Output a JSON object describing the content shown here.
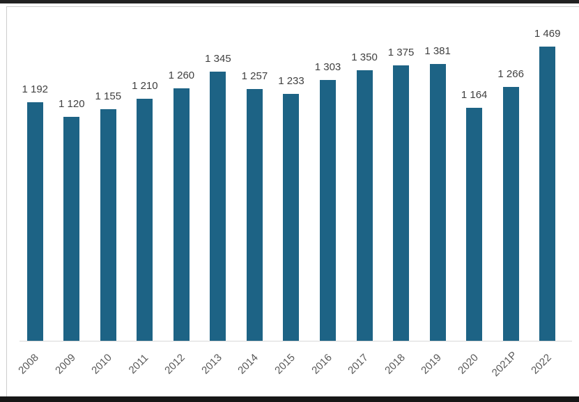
{
  "chart_data": {
    "type": "bar",
    "categories": [
      "2008",
      "2009",
      "2010",
      "2011",
      "2012",
      "2013",
      "2014",
      "2015",
      "2016",
      "2017",
      "2018",
      "2019",
      "2020",
      "2021P",
      "2022"
    ],
    "values": [
      1192,
      1120,
      1155,
      1210,
      1260,
      1345,
      1257,
      1233,
      1303,
      1350,
      1375,
      1381,
      1164,
      1266,
      1469
    ],
    "value_labels": [
      "1 192",
      "1 120",
      "1 155",
      "1 210",
      "1 260",
      "1 345",
      "1 257",
      "1 233",
      "1 303",
      "1 350",
      "1 375",
      "1 381",
      "1 164",
      "1 266",
      "1 469"
    ],
    "xlabel": "",
    "ylabel": "",
    "ylim": [
      0,
      1667
    ],
    "grid": "off",
    "legend": "none",
    "x_tick_rotation_deg": 45,
    "colors": {
      "bar": "#1d6385",
      "value_label_text": "#404040",
      "axis_label_text": "#595959",
      "axis_line": "#d9d9d9",
      "card_border": "#cccccc",
      "background": "#ffffff",
      "top_strip": "#212121",
      "bottom_strip": "#161616"
    }
  }
}
